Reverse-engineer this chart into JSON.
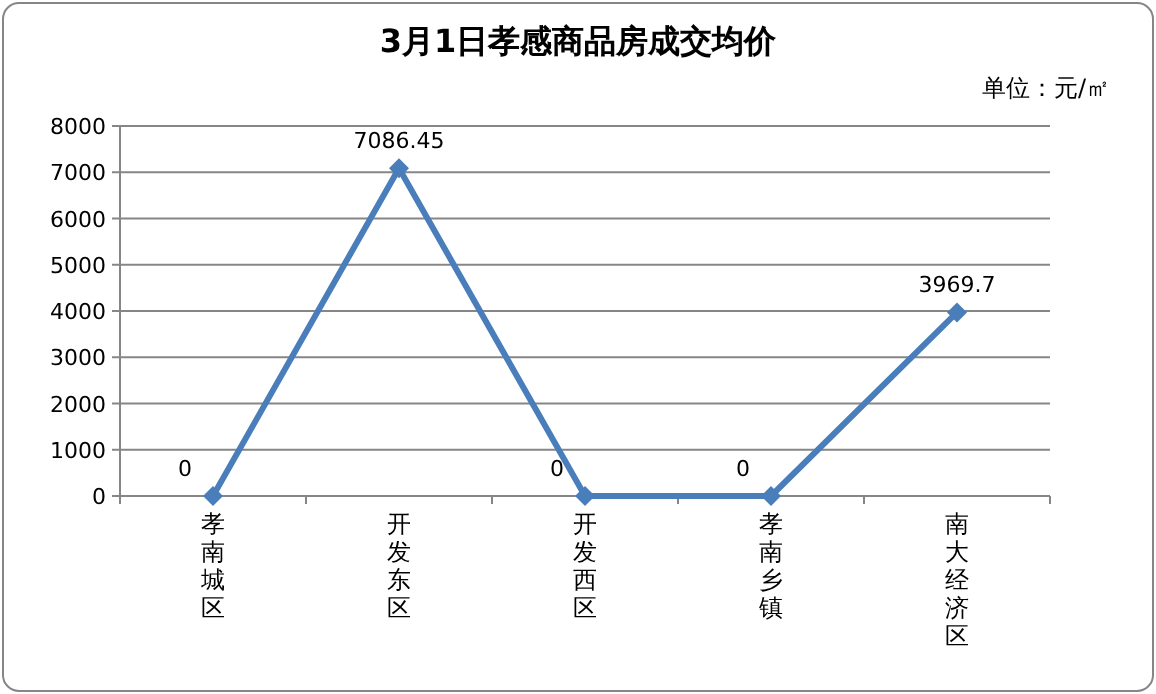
{
  "chart_data": {
    "type": "line",
    "title": "3月1日孝感商品房成交均价",
    "annotations": [
      "单位：元/㎡"
    ],
    "categories": [
      "孝南城区",
      "开发东区",
      "开发西区",
      "孝南乡镇",
      "南大经济区"
    ],
    "series": [
      {
        "color": "#4a7ebb",
        "values": [
          0,
          7086.45,
          0,
          0,
          3969.7
        ]
      }
    ],
    "ylim": [
      0,
      8000
    ],
    "yticks": [
      0,
      1000,
      2000,
      3000,
      4000,
      5000,
      6000,
      7000,
      8000
    ],
    "grid": "y",
    "marker": "diamond",
    "line_style": "solid",
    "data_labels": true
  }
}
